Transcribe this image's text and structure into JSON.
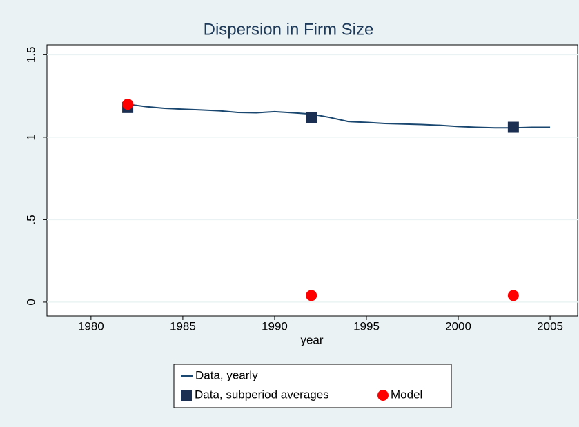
{
  "chart_data": {
    "type": "line",
    "title": "Dispersion in Firm Size",
    "x_label": "year",
    "xlim": [
      1977.6,
      2006.5
    ],
    "xticks": [
      1980,
      1985,
      1990,
      1995,
      2000,
      2005
    ],
    "ylim": [
      -0.084,
      1.56
    ],
    "yticks": [
      0,
      {
        "value": 0.5,
        "label": ".5"
      },
      1,
      1.5
    ],
    "grid": true,
    "series": [
      {
        "name": "Data, yearly",
        "style": "line",
        "color": "#1a476f",
        "x": [
          1982,
          1983,
          1984,
          1985,
          1986,
          1987,
          1988,
          1989,
          1990,
          1991,
          1992,
          1993,
          1994,
          1995,
          1996,
          1997,
          1998,
          1999,
          2000,
          2001,
          2002,
          2003,
          2004,
          2005
        ],
        "values": [
          1.2,
          1.185,
          1.175,
          1.17,
          1.165,
          1.16,
          1.15,
          1.148,
          1.155,
          1.148,
          1.14,
          1.12,
          1.095,
          1.09,
          1.083,
          1.08,
          1.077,
          1.072,
          1.065,
          1.06,
          1.057,
          1.057,
          1.06,
          1.06
        ]
      },
      {
        "name": "Data, subperiod averages",
        "style": "square",
        "color": "#1a2f52",
        "x": [
          1982,
          1992,
          2003
        ],
        "values": [
          1.18,
          1.12,
          1.06
        ]
      },
      {
        "name": "Model",
        "style": "circle",
        "color": "#ff0000",
        "x": [
          1982,
          1992,
          2003
        ],
        "values": [
          1.2,
          0.04,
          0.04
        ]
      }
    ]
  }
}
